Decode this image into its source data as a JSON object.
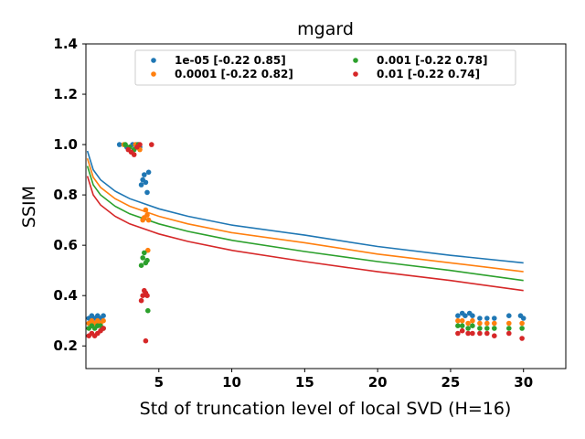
{
  "chart_data": {
    "type": "scatter",
    "title": "mgard",
    "xlabel": "Std of truncation level of local SVD (H=16)",
    "ylabel": "SSIM",
    "xlim": [
      0.0,
      32.9
    ],
    "ylim": [
      0.11,
      1.4
    ],
    "xticks": [
      5,
      10,
      15,
      20,
      25,
      30
    ],
    "yticks": [
      0.2,
      0.4,
      0.6,
      0.8,
      1.0,
      1.2,
      1.4
    ],
    "grid": false,
    "legend": {
      "placement": "top-center",
      "columns": 2
    },
    "series": [
      {
        "name": "1e-05 [-0.22  0.85]",
        "color": "#1f77b4",
        "fit_curve": [
          [
            0.1,
            0.975
          ],
          [
            0.5,
            0.9
          ],
          [
            1,
            0.86
          ],
          [
            2,
            0.815
          ],
          [
            3,
            0.785
          ],
          [
            5,
            0.745
          ],
          [
            7,
            0.715
          ],
          [
            10,
            0.68
          ],
          [
            15,
            0.64
          ],
          [
            20,
            0.595
          ],
          [
            25,
            0.56
          ],
          [
            30,
            0.53
          ]
        ],
        "points": [
          [
            0.2,
            0.31
          ],
          [
            0.4,
            0.32
          ],
          [
            0.6,
            0.31
          ],
          [
            0.8,
            0.32
          ],
          [
            1.0,
            0.31
          ],
          [
            1.2,
            0.32
          ],
          [
            2.3,
            1.0
          ],
          [
            2.8,
            0.99
          ],
          [
            3.2,
            1.0
          ],
          [
            3.5,
            1.0
          ],
          [
            3.7,
            0.99
          ],
          [
            3.8,
            0.84
          ],
          [
            3.9,
            0.86
          ],
          [
            4.0,
            0.88
          ],
          [
            4.1,
            0.85
          ],
          [
            4.2,
            0.81
          ],
          [
            4.3,
            0.89
          ],
          [
            25.5,
            0.32
          ],
          [
            25.8,
            0.33
          ],
          [
            26.0,
            0.32
          ],
          [
            26.3,
            0.33
          ],
          [
            26.5,
            0.32
          ],
          [
            27.0,
            0.31
          ],
          [
            27.5,
            0.31
          ],
          [
            28.0,
            0.31
          ],
          [
            29.0,
            0.32
          ],
          [
            29.8,
            0.32
          ],
          [
            30.0,
            0.31
          ]
        ]
      },
      {
        "name": "0.0001 [-0.22  0.82]",
        "color": "#ff7f0e",
        "fit_curve": [
          [
            0.1,
            0.945
          ],
          [
            0.5,
            0.87
          ],
          [
            1,
            0.83
          ],
          [
            2,
            0.785
          ],
          [
            3,
            0.755
          ],
          [
            5,
            0.715
          ],
          [
            7,
            0.685
          ],
          [
            10,
            0.65
          ],
          [
            15,
            0.61
          ],
          [
            20,
            0.565
          ],
          [
            25,
            0.53
          ],
          [
            30,
            0.495
          ]
        ],
        "points": [
          [
            0.2,
            0.29
          ],
          [
            0.4,
            0.3
          ],
          [
            0.6,
            0.29
          ],
          [
            0.8,
            0.3
          ],
          [
            1.0,
            0.29
          ],
          [
            1.2,
            0.3
          ],
          [
            2.6,
            1.0
          ],
          [
            3.0,
            0.99
          ],
          [
            3.4,
            1.0
          ],
          [
            3.7,
            0.98
          ],
          [
            3.9,
            0.7
          ],
          [
            4.0,
            0.71
          ],
          [
            4.1,
            0.74
          ],
          [
            4.2,
            0.72
          ],
          [
            4.25,
            0.58
          ],
          [
            4.3,
            0.7
          ],
          [
            25.5,
            0.3
          ],
          [
            25.8,
            0.3
          ],
          [
            26.2,
            0.29
          ],
          [
            26.5,
            0.3
          ],
          [
            27.0,
            0.29
          ],
          [
            27.5,
            0.29
          ],
          [
            28.0,
            0.29
          ],
          [
            29.0,
            0.29
          ],
          [
            29.9,
            0.29
          ]
        ]
      },
      {
        "name": "0.001 [-0.22  0.78]",
        "color": "#2ca02c",
        "fit_curve": [
          [
            0.1,
            0.915
          ],
          [
            0.5,
            0.84
          ],
          [
            1,
            0.8
          ],
          [
            2,
            0.755
          ],
          [
            3,
            0.725
          ],
          [
            5,
            0.685
          ],
          [
            7,
            0.655
          ],
          [
            10,
            0.62
          ],
          [
            15,
            0.575
          ],
          [
            20,
            0.535
          ],
          [
            25,
            0.5
          ],
          [
            30,
            0.46
          ]
        ],
        "points": [
          [
            0.2,
            0.27
          ],
          [
            0.4,
            0.28
          ],
          [
            0.6,
            0.27
          ],
          [
            0.8,
            0.28
          ],
          [
            1.0,
            0.28
          ],
          [
            1.2,
            0.27
          ],
          [
            2.7,
            1.0
          ],
          [
            3.0,
            0.99
          ],
          [
            3.3,
            0.98
          ],
          [
            3.6,
            1.0
          ],
          [
            3.8,
            0.52
          ],
          [
            3.9,
            0.55
          ],
          [
            4.0,
            0.57
          ],
          [
            4.1,
            0.53
          ],
          [
            4.2,
            0.54
          ],
          [
            4.25,
            0.34
          ],
          [
            25.5,
            0.28
          ],
          [
            25.8,
            0.28
          ],
          [
            26.2,
            0.27
          ],
          [
            26.5,
            0.28
          ],
          [
            27.0,
            0.27
          ],
          [
            27.5,
            0.27
          ],
          [
            28.0,
            0.27
          ],
          [
            29.0,
            0.27
          ],
          [
            29.9,
            0.27
          ]
        ]
      },
      {
        "name": "0.01 [-0.22  0.74]",
        "color": "#d62728",
        "fit_curve": [
          [
            0.1,
            0.875
          ],
          [
            0.5,
            0.8
          ],
          [
            1,
            0.76
          ],
          [
            2,
            0.715
          ],
          [
            3,
            0.685
          ],
          [
            5,
            0.645
          ],
          [
            7,
            0.615
          ],
          [
            10,
            0.58
          ],
          [
            15,
            0.535
          ],
          [
            20,
            0.495
          ],
          [
            25,
            0.46
          ],
          [
            30,
            0.42
          ]
        ],
        "points": [
          [
            0.2,
            0.24
          ],
          [
            0.4,
            0.25
          ],
          [
            0.6,
            0.24
          ],
          [
            0.8,
            0.25
          ],
          [
            1.0,
            0.26
          ],
          [
            1.2,
            0.27
          ],
          [
            2.9,
            0.98
          ],
          [
            3.1,
            0.97
          ],
          [
            3.3,
            0.96
          ],
          [
            3.5,
            0.99
          ],
          [
            3.7,
            1.0
          ],
          [
            3.8,
            0.38
          ],
          [
            3.9,
            0.4
          ],
          [
            4.0,
            0.42
          ],
          [
            4.1,
            0.41
          ],
          [
            4.2,
            0.4
          ],
          [
            4.1,
            0.22
          ],
          [
            4.5,
            1.0
          ],
          [
            25.5,
            0.25
          ],
          [
            25.8,
            0.26
          ],
          [
            26.2,
            0.25
          ],
          [
            26.5,
            0.25
          ],
          [
            27.0,
            0.25
          ],
          [
            27.5,
            0.25
          ],
          [
            28.0,
            0.24
          ],
          [
            29.0,
            0.25
          ],
          [
            29.9,
            0.23
          ]
        ]
      }
    ]
  }
}
